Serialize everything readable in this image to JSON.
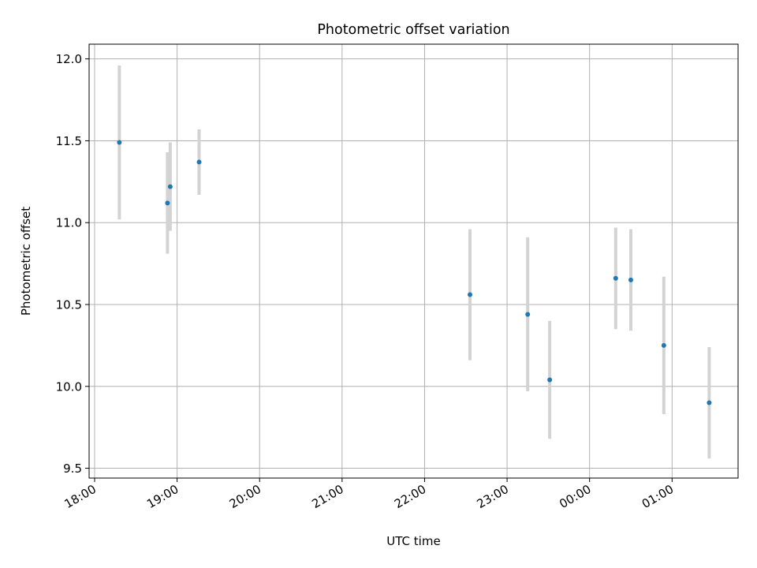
{
  "chart_data": {
    "type": "scatter",
    "title": "Photometric offset variation",
    "xlabel": "UTC time",
    "ylabel": "Photometric offset",
    "x_ticks": [
      "18:00",
      "19:00",
      "20:00",
      "21:00",
      "22:00",
      "23:00",
      "00:00",
      "01:00"
    ],
    "y_ticks": [
      "9.5",
      "10.0",
      "10.5",
      "11.0",
      "11.5",
      "12.0"
    ],
    "xlim": [
      "17:56",
      "01:48"
    ],
    "ylim": [
      9.44,
      12.09
    ],
    "grid": true,
    "series": [
      {
        "marker_color": "#1f77b4",
        "errorbar_color": "#d3d3d3",
        "points": [
          {
            "t": "18:18",
            "y": 11.49,
            "yerr": 0.47
          },
          {
            "t": "18:53",
            "y": 11.12,
            "yerr": 0.31
          },
          {
            "t": "18:55",
            "y": 11.22,
            "yerr": 0.27
          },
          {
            "t": "19:16",
            "y": 11.37,
            "yerr": 0.2
          },
          {
            "t": "22:33",
            "y": 10.56,
            "yerr": 0.4
          },
          {
            "t": "23:15",
            "y": 10.44,
            "yerr": 0.47
          },
          {
            "t": "23:31",
            "y": 10.04,
            "yerr": 0.36
          },
          {
            "t": "00:19",
            "y": 10.66,
            "yerr": 0.31
          },
          {
            "t": "00:30",
            "y": 10.65,
            "yerr": 0.31
          },
          {
            "t": "00:54",
            "y": 10.25,
            "yerr": 0.42
          },
          {
            "t": "01:27",
            "y": 9.9,
            "yerr": 0.34
          }
        ]
      }
    ]
  }
}
